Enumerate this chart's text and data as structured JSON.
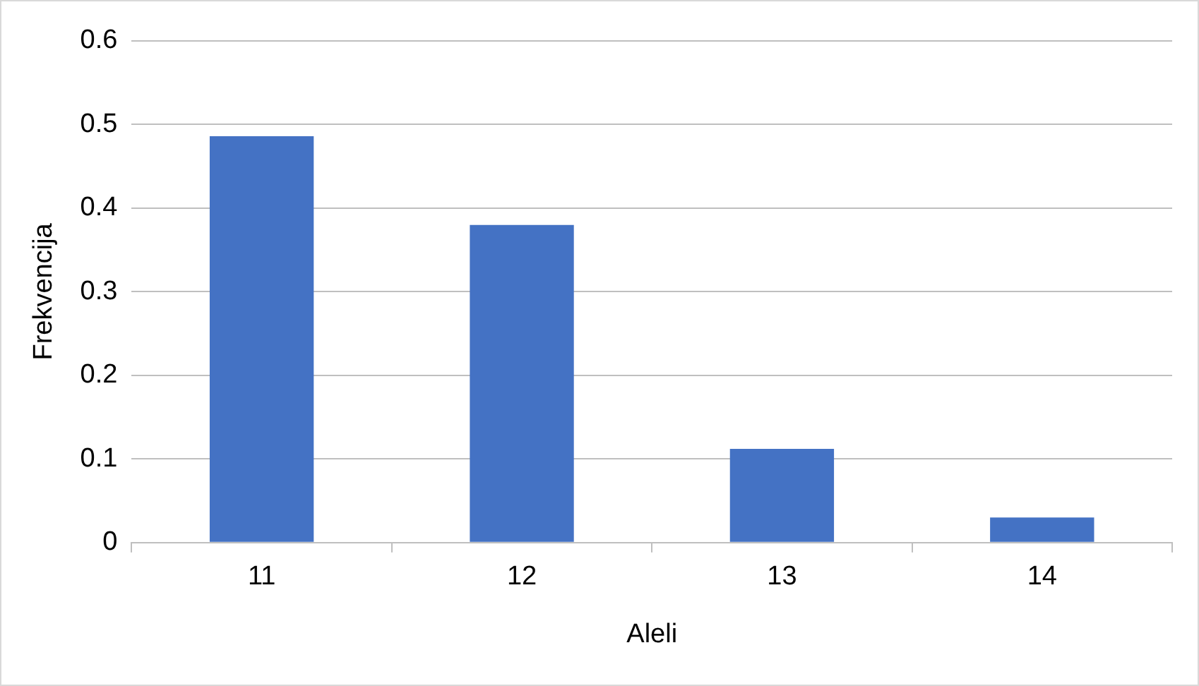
{
  "chart_data": {
    "type": "bar",
    "xlabel": "Aleli",
    "ylabel": "Frekvencija",
    "categories": [
      "11",
      "12",
      "13",
      "14"
    ],
    "values": [
      0.486,
      0.38,
      0.112,
      0.03
    ],
    "color": "#4472c4",
    "ylim": [
      0,
      0.6
    ],
    "yticks": [
      0,
      0.1,
      0.2,
      0.3,
      0.4,
      0.5,
      0.6
    ],
    "grid": "y",
    "legend": false
  }
}
